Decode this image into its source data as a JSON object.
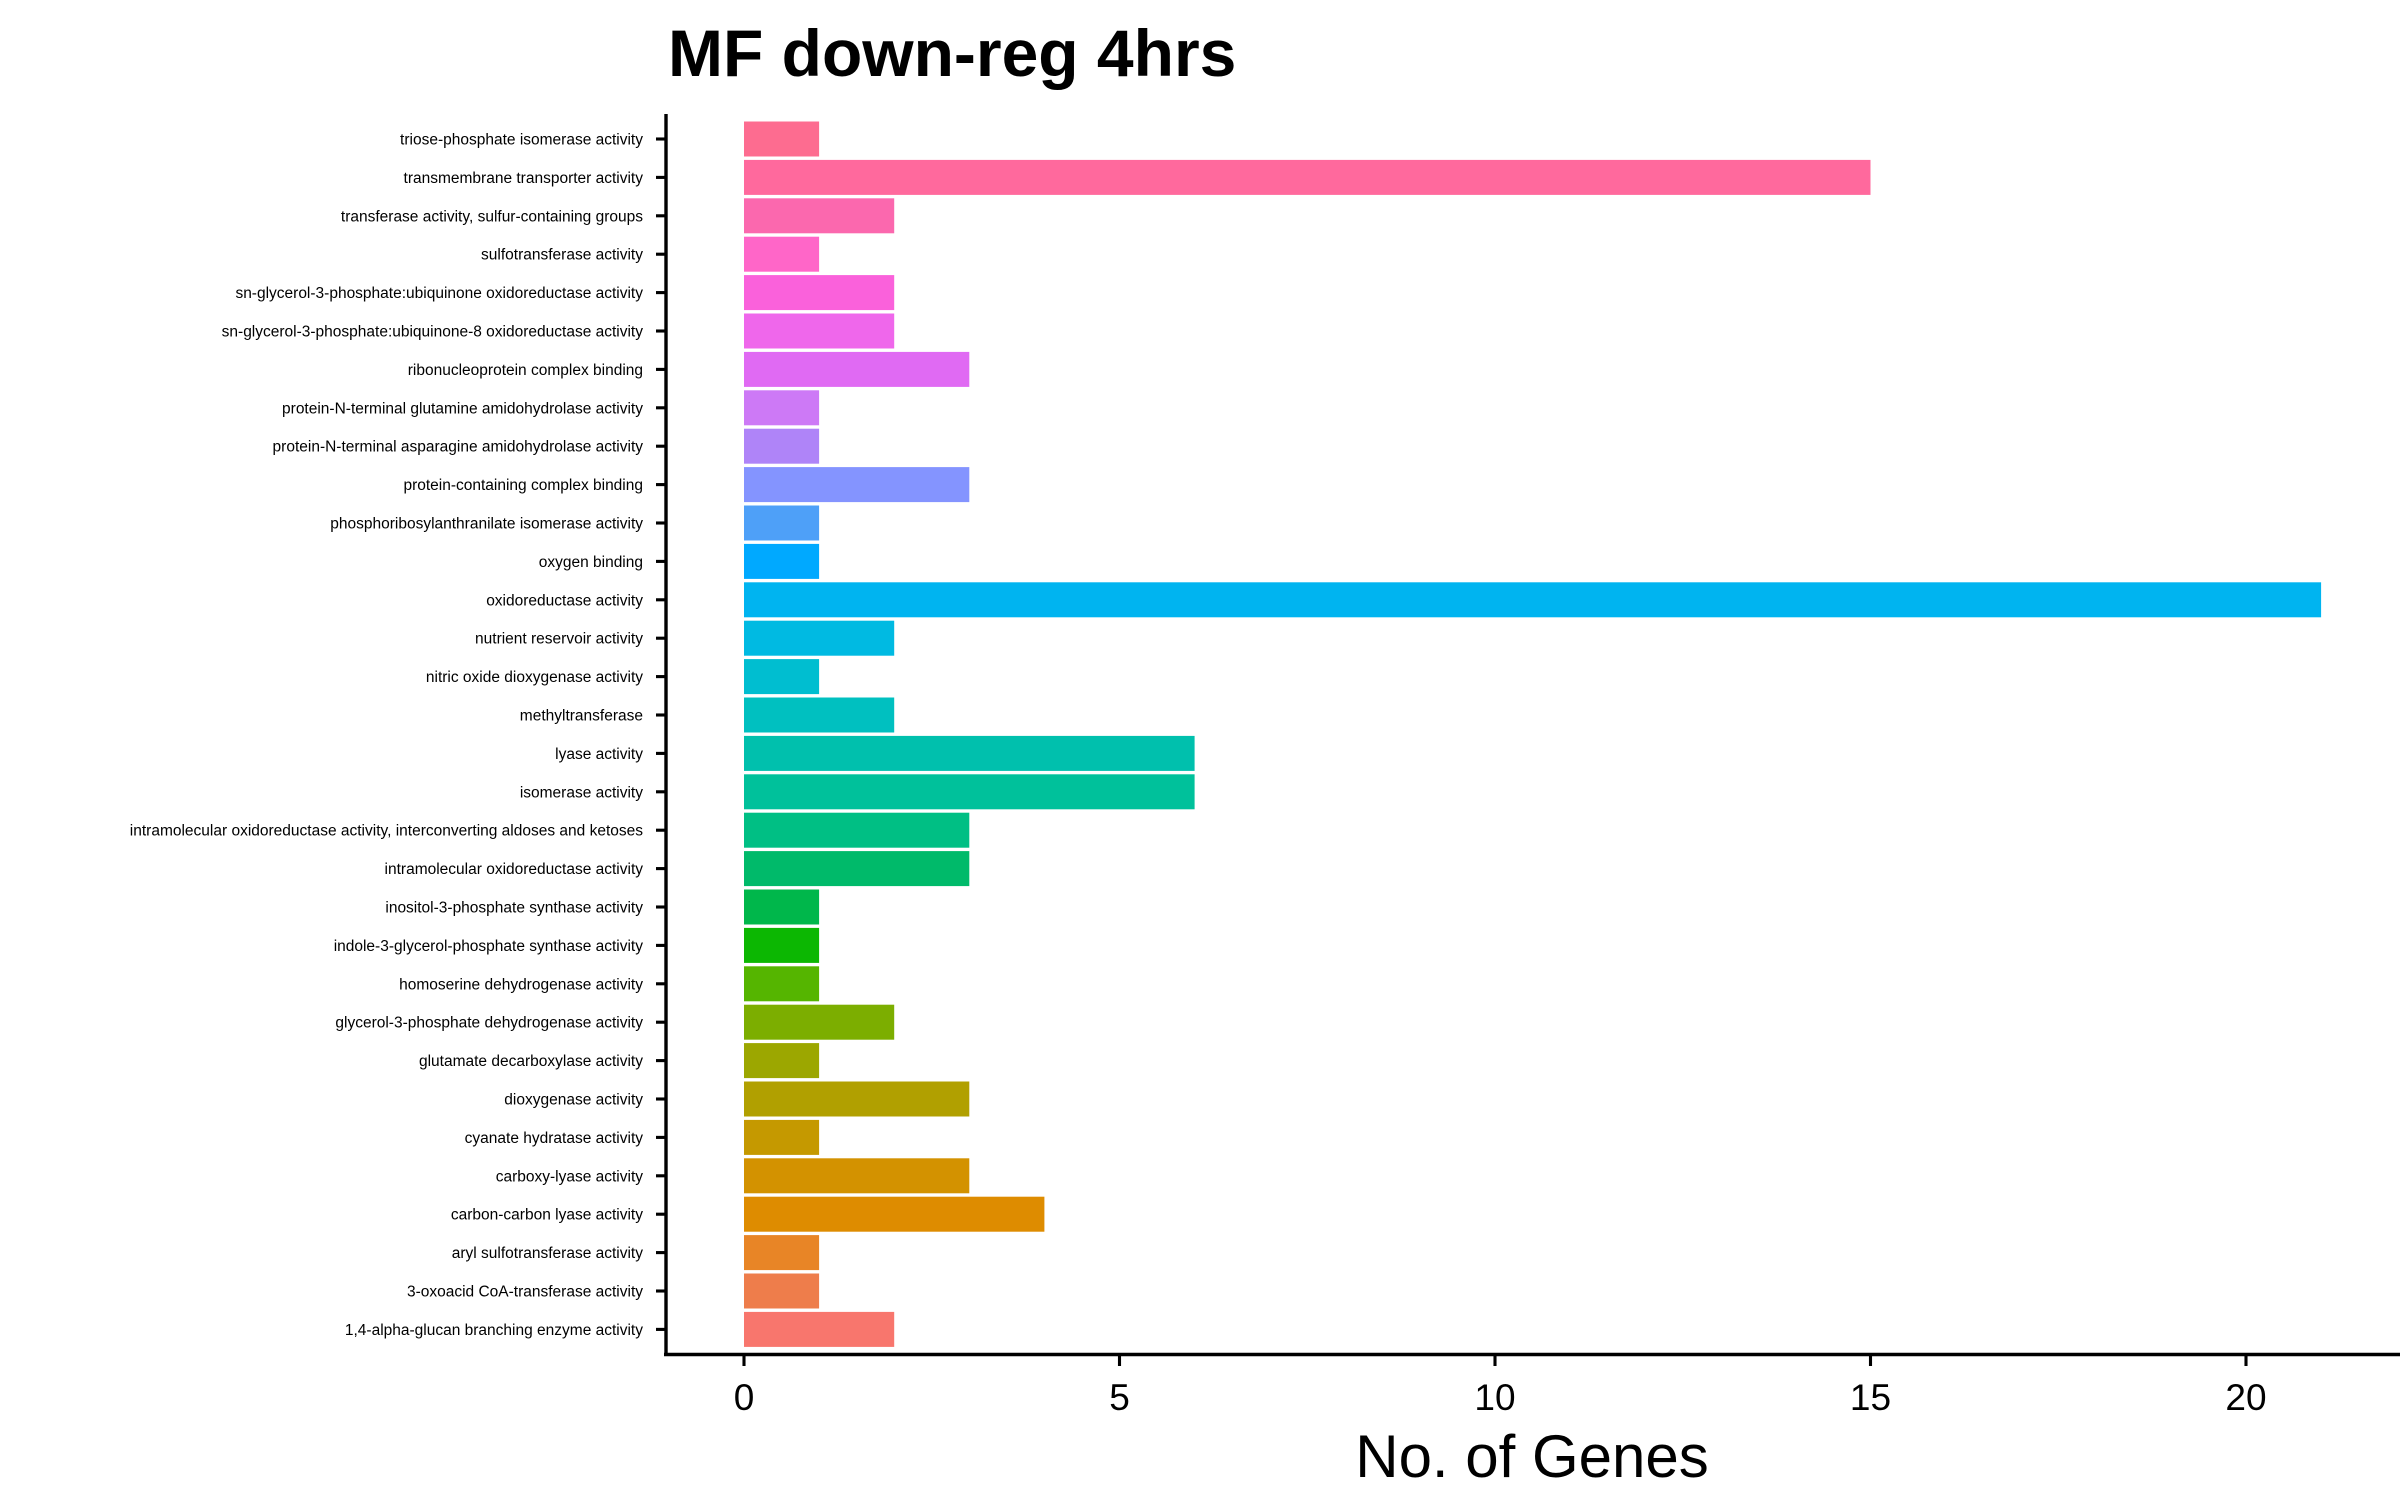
{
  "chart_data": {
    "type": "bar",
    "orientation": "horizontal",
    "title": "MF down-reg 4hrs",
    "xlabel": "No. of Genes",
    "ylabel": "",
    "xlim": [
      -1.05,
      21.6
    ],
    "x_ticks": [
      0,
      5,
      10,
      15,
      20
    ],
    "grid": false,
    "legend": "none",
    "categories": [
      "triose-phosphate isomerase activity",
      "transmembrane transporter activity",
      "transferase activity, sulfur-containing groups",
      "sulfotransferase activity",
      "sn-glycerol-3-phosphate:ubiquinone oxidoreductase activity",
      "sn-glycerol-3-phosphate:ubiquinone-8 oxidoreductase activity",
      "ribonucleoprotein complex binding",
      "protein-N-terminal glutamine amidohydrolase activity",
      "protein-N-terminal asparagine amidohydrolase activity",
      "protein-containing complex binding",
      "phosphoribosylanthranilate isomerase activity",
      "oxygen binding",
      "oxidoreductase activity",
      "nutrient reservoir activity",
      "nitric oxide dioxygenase activity",
      "methyltransferase",
      "lyase activity",
      "isomerase activity",
      "intramolecular oxidoreductase activity, interconverting aldoses and ketoses",
      "intramolecular oxidoreductase activity",
      "inositol-3-phosphate synthase activity",
      "indole-3-glycerol-phosphate synthase activity",
      "homoserine dehydrogenase activity",
      "glycerol-3-phosphate dehydrogenase activity",
      "glutamate decarboxylase activity",
      "dioxygenase activity",
      "cyanate hydratase activity",
      "carboxy-lyase activity",
      "carbon-carbon lyase activity",
      "aryl sulfotransferase activity",
      "3-oxoacid CoA-transferase activity",
      "1,4-alpha-glucan branching enzyme activity"
    ],
    "values": [
      1,
      15,
      2,
      1,
      2,
      2,
      3,
      1,
      1,
      3,
      1,
      1,
      21,
      2,
      1,
      2,
      6,
      6,
      3,
      3,
      1,
      1,
      1,
      2,
      1,
      3,
      1,
      3,
      4,
      1,
      1,
      2
    ],
    "colors": [
      "#FD6C90",
      "#FF699D",
      "#FB68AE",
      "#FF66C8",
      "#FA61DB",
      "#EF67EB",
      "#E06AF3",
      "#CD79F6",
      "#AF84F8",
      "#8494FF",
      "#4EA0F8",
      "#00A9FF",
      "#00B4F0",
      "#00BAE2",
      "#00BED0",
      "#00C0C0",
      "#00C0AD",
      "#00C19B",
      "#00BF84",
      "#00BA6A",
      "#00B74B",
      "#0CB702",
      "#55B500",
      "#7CAE00",
      "#9CA700",
      "#B1A000",
      "#C59900",
      "#D39200",
      "#DE8C00",
      "#E88526",
      "#EE7D4B",
      "#F8766D"
    ]
  }
}
